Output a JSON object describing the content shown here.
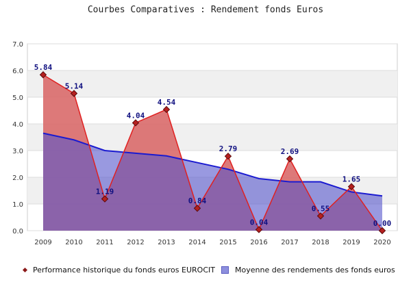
{
  "chart_data": {
    "type": "area",
    "title": "Courbes Comparatives : Rendement fonds Euros",
    "categories": [
      "2009",
      "2010",
      "2011",
      "2012",
      "2013",
      "2014",
      "2015",
      "2016",
      "2017",
      "2018",
      "2019",
      "2020"
    ],
    "ylim": [
      0,
      7
    ],
    "yticks": [
      "0.0",
      "1.0",
      "2.0",
      "3.0",
      "4.0",
      "5.0",
      "6.0",
      "7.0"
    ],
    "grid": true,
    "legend_placement": "bottom",
    "series": [
      {
        "name": "Performance historique du fonds euros EUROCIT",
        "values": [
          5.84,
          5.14,
          1.19,
          4.04,
          4.54,
          0.84,
          2.79,
          0.04,
          2.69,
          0.55,
          1.65,
          0.0
        ],
        "labels": [
          "5.84",
          "5.14",
          "1.19",
          "4.04",
          "4.54",
          "0.84",
          "2.79",
          "0.04",
          "2.69",
          "0.55",
          "1.65",
          "0.00"
        ],
        "color": "#e02020"
      },
      {
        "name": "Moyenne des rendements des fonds euros",
        "values": [
          3.65,
          3.4,
          3.0,
          2.9,
          2.8,
          2.55,
          2.3,
          1.95,
          1.83,
          1.83,
          1.45,
          1.3
        ],
        "color": "#1a1ad0"
      }
    ]
  }
}
